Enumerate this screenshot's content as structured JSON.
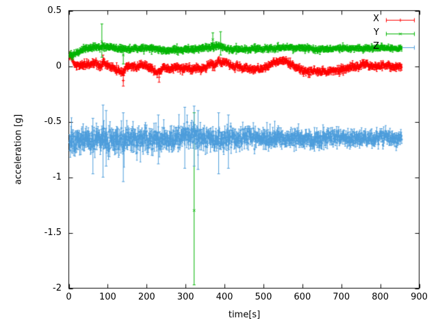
{
  "chart_data": {
    "type": "scatter",
    "title": "",
    "xlabel": "time[s]",
    "ylabel": "acceleration [g]",
    "xlim": [
      0,
      900
    ],
    "ylim": [
      -2,
      0.5
    ],
    "x_ticks": [
      0,
      100,
      200,
      300,
      400,
      500,
      600,
      700,
      800,
      900
    ],
    "y_tick_values": [
      0.5,
      0,
      -0.5,
      -1,
      -1.5,
      -2
    ],
    "y_tick_labels": [
      "0.5",
      "0",
      "-0.5",
      "-1",
      "-1.5",
      "-2"
    ],
    "grid": false,
    "legend_position": "top-right-inside",
    "point_style": "points-with-vertical-errorbars",
    "background": "#ffffff",
    "axis_color": "#000000",
    "t_range": [
      2,
      855
    ],
    "t_step": 1,
    "series": [
      {
        "name": "X",
        "color": "#ff0000",
        "marker": "plus",
        "mean": [
          [
            0,
            0.1
          ],
          [
            6,
            0.08
          ],
          [
            12,
            0.03
          ],
          [
            20,
            0.0
          ],
          [
            30,
            0.01
          ],
          [
            45,
            0.02
          ],
          [
            60,
            0.02
          ],
          [
            70,
            0.03
          ],
          [
            80,
            0.0
          ],
          [
            90,
            0.03
          ],
          [
            100,
            0.01
          ],
          [
            112,
            -0.02
          ],
          [
            125,
            -0.04
          ],
          [
            140,
            -0.05
          ],
          [
            150,
            0.0
          ],
          [
            165,
            0.0
          ],
          [
            175,
            -0.02
          ],
          [
            185,
            0.02
          ],
          [
            200,
            0.0
          ],
          [
            212,
            -0.02
          ],
          [
            225,
            -0.06
          ],
          [
            235,
            -0.05
          ],
          [
            245,
            -0.01
          ],
          [
            258,
            -0.04
          ],
          [
            268,
            -0.02
          ],
          [
            278,
            0.0
          ],
          [
            290,
            -0.03
          ],
          [
            305,
            -0.01
          ],
          [
            315,
            -0.03
          ],
          [
            325,
            -0.01
          ],
          [
            338,
            -0.03
          ],
          [
            350,
            -0.01
          ],
          [
            362,
            0.02
          ],
          [
            375,
            0.01
          ],
          [
            385,
            0.05
          ],
          [
            395,
            0.03
          ],
          [
            405,
            0.04
          ],
          [
            415,
            0.0
          ],
          [
            430,
            0.0
          ],
          [
            445,
            -0.02
          ],
          [
            462,
            -0.02
          ],
          [
            480,
            -0.03
          ],
          [
            500,
            -0.02
          ],
          [
            512,
            0.0
          ],
          [
            525,
            0.03
          ],
          [
            540,
            0.04
          ],
          [
            555,
            0.05
          ],
          [
            568,
            0.02
          ],
          [
            580,
            0.0
          ],
          [
            592,
            -0.02
          ],
          [
            605,
            -0.05
          ],
          [
            620,
            -0.05
          ],
          [
            632,
            -0.04
          ],
          [
            648,
            -0.05
          ],
          [
            662,
            -0.05
          ],
          [
            675,
            -0.04
          ],
          [
            688,
            -0.05
          ],
          [
            700,
            -0.03
          ],
          [
            715,
            -0.02
          ],
          [
            730,
            0.0
          ],
          [
            745,
            -0.01
          ],
          [
            760,
            0.02
          ],
          [
            775,
            0.0
          ],
          [
            790,
            -0.01
          ],
          [
            805,
            0.01
          ],
          [
            820,
            0.0
          ],
          [
            835,
            -0.01
          ],
          [
            855,
            0.0
          ]
        ],
        "noise_sigma": [
          [
            0,
            0.012
          ],
          [
            855,
            0.012
          ]
        ],
        "errorbar": [
          [
            0,
            0.022
          ],
          [
            855,
            0.02
          ]
        ],
        "features": [
          [
            88,
            0.06,
            0.02,
            0.1
          ],
          [
            140,
            -0.13,
            -0.18,
            -0.08
          ],
          [
            232,
            -0.1,
            -0.145,
            -0.055
          ]
        ]
      },
      {
        "name": "Y",
        "color": "#00b400",
        "marker": "cross",
        "mean": [
          [
            0,
            0.1
          ],
          [
            10,
            0.1
          ],
          [
            20,
            0.12
          ],
          [
            35,
            0.15
          ],
          [
            50,
            0.16
          ],
          [
            70,
            0.17
          ],
          [
            90,
            0.17
          ],
          [
            110,
            0.17
          ],
          [
            130,
            0.16
          ],
          [
            150,
            0.15
          ],
          [
            170,
            0.16
          ],
          [
            190,
            0.16
          ],
          [
            210,
            0.16
          ],
          [
            230,
            0.15
          ],
          [
            250,
            0.14
          ],
          [
            270,
            0.15
          ],
          [
            290,
            0.15
          ],
          [
            310,
            0.15
          ],
          [
            330,
            0.155
          ],
          [
            350,
            0.165
          ],
          [
            370,
            0.17
          ],
          [
            385,
            0.18
          ],
          [
            400,
            0.165
          ],
          [
            420,
            0.155
          ],
          [
            440,
            0.15
          ],
          [
            460,
            0.15
          ],
          [
            480,
            0.16
          ],
          [
            500,
            0.16
          ],
          [
            520,
            0.16
          ],
          [
            540,
            0.165
          ],
          [
            560,
            0.17
          ],
          [
            580,
            0.16
          ],
          [
            600,
            0.16
          ],
          [
            620,
            0.16
          ],
          [
            640,
            0.15
          ],
          [
            660,
            0.155
          ],
          [
            680,
            0.16
          ],
          [
            700,
            0.16
          ],
          [
            720,
            0.16
          ],
          [
            740,
            0.16
          ],
          [
            760,
            0.155
          ],
          [
            780,
            0.165
          ],
          [
            800,
            0.17
          ],
          [
            820,
            0.16
          ],
          [
            855,
            0.16
          ]
        ],
        "noise_sigma": [
          [
            0,
            0.009
          ],
          [
            855,
            0.009
          ]
        ],
        "errorbar": [
          [
            0,
            0.02
          ],
          [
            855,
            0.018
          ]
        ],
        "features": [
          [
            85,
            0.22,
            0.08,
            0.38
          ],
          [
            140,
            0.1,
            0.02,
            0.18
          ],
          [
            322,
            -1.3,
            -1.97,
            -0.42
          ],
          [
            370,
            0.24,
            0.15,
            0.3
          ],
          [
            390,
            0.2,
            0.1,
            0.31
          ]
        ]
      },
      {
        "name": "Z",
        "color": "#4d9ddb",
        "marker": "asterisk",
        "mean": [
          [
            0,
            -0.67
          ],
          [
            30,
            -0.66
          ],
          [
            60,
            -0.67
          ],
          [
            90,
            -0.66
          ],
          [
            120,
            -0.67
          ],
          [
            150,
            -0.66
          ],
          [
            180,
            -0.66
          ],
          [
            210,
            -0.66
          ],
          [
            240,
            -0.66
          ],
          [
            270,
            -0.65
          ],
          [
            300,
            -0.63
          ],
          [
            315,
            -0.62
          ],
          [
            330,
            -0.64
          ],
          [
            350,
            -0.65
          ],
          [
            370,
            -0.66
          ],
          [
            400,
            -0.66
          ],
          [
            430,
            -0.66
          ],
          [
            460,
            -0.65
          ],
          [
            490,
            -0.66
          ],
          [
            520,
            -0.65
          ],
          [
            550,
            -0.65
          ],
          [
            580,
            -0.65
          ],
          [
            610,
            -0.66
          ],
          [
            640,
            -0.65
          ],
          [
            670,
            -0.64
          ],
          [
            700,
            -0.64
          ],
          [
            730,
            -0.65
          ],
          [
            760,
            -0.66
          ],
          [
            790,
            -0.65
          ],
          [
            810,
            -0.64
          ],
          [
            840,
            -0.65
          ],
          [
            855,
            -0.65
          ]
        ],
        "noise_sigma": [
          [
            0,
            0.05
          ],
          [
            200,
            0.045
          ],
          [
            350,
            0.042
          ],
          [
            500,
            0.035
          ],
          [
            700,
            0.028
          ],
          [
            855,
            0.024
          ]
        ],
        "errorbar": [
          [
            0,
            0.06
          ],
          [
            300,
            0.055
          ],
          [
            500,
            0.045
          ],
          [
            855,
            0.035
          ]
        ],
        "features": [
          [
            62,
            -0.72,
            -0.97,
            -0.47
          ],
          [
            88,
            -0.67,
            -1.0,
            -0.35
          ],
          [
            96,
            -0.6,
            -0.9,
            -0.4
          ],
          [
            140,
            -0.72,
            -1.04,
            -0.42
          ],
          [
            230,
            -0.65,
            -0.88,
            -0.44
          ],
          [
            298,
            -0.64,
            -0.92,
            -0.37
          ],
          [
            322,
            -0.62,
            -0.9,
            -0.36
          ],
          [
            332,
            -0.66,
            -0.93,
            -0.4
          ],
          [
            385,
            -0.68,
            -0.97,
            -0.42
          ],
          [
            410,
            -0.66,
            -0.92,
            -0.44
          ]
        ]
      }
    ]
  }
}
